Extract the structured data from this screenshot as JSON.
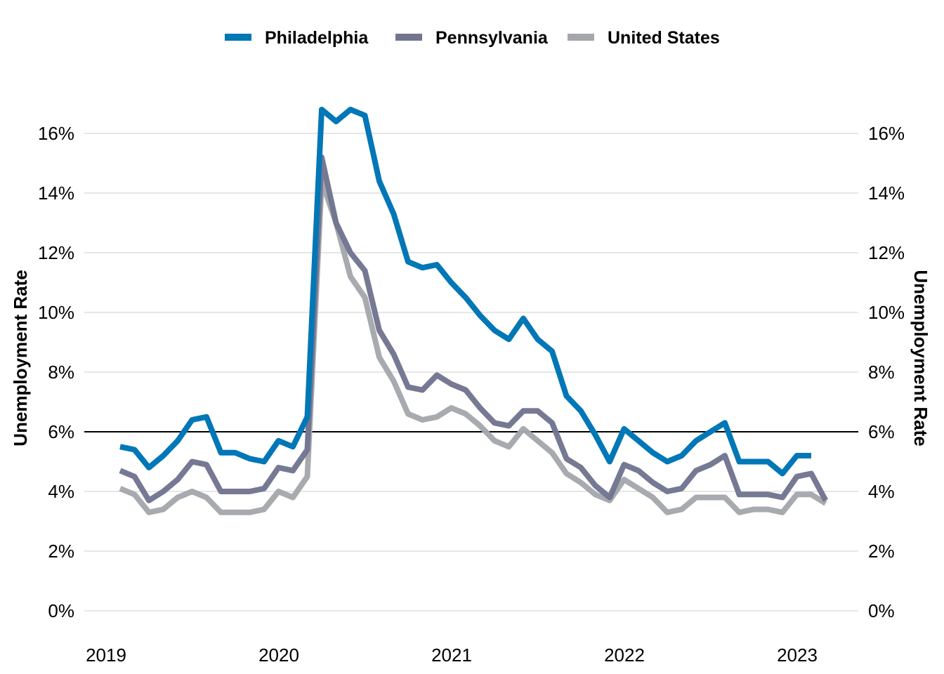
{
  "chart_data": {
    "type": "line",
    "title": "",
    "ylabel_left": "Unemployment Rate",
    "ylabel_right": "Unemployment Rate",
    "xlabel": "",
    "x_start": "2019-01",
    "x_frequency": "monthly",
    "x_tick_labels": [
      "2019",
      "2020",
      "2021",
      "2022",
      "2023"
    ],
    "y_ticks": [
      0,
      2,
      4,
      6,
      8,
      10,
      12,
      14,
      16
    ],
    "y_tick_labels": [
      "0%",
      "2%",
      "4%",
      "6%",
      "8%",
      "10%",
      "12%",
      "14%",
      "16%"
    ],
    "ylim": [
      0,
      17
    ],
    "reference_line": 6,
    "grid": "horizontal",
    "legend_position": "top",
    "series": [
      {
        "name": "Philadelphia",
        "color": "#0077b6",
        "values": [
          5.5,
          5.4,
          4.8,
          5.2,
          5.7,
          6.4,
          6.5,
          5.3,
          5.3,
          5.1,
          5.0,
          5.7,
          5.5,
          6.5,
          16.8,
          16.4,
          16.8,
          16.6,
          14.4,
          13.3,
          11.7,
          11.5,
          11.6,
          11.0,
          10.5,
          9.9,
          9.4,
          9.1,
          9.8,
          9.1,
          8.7,
          7.2,
          6.7,
          5.9,
          5.0,
          6.1,
          5.7,
          5.3,
          5.0,
          5.2,
          5.7,
          6.0,
          6.3,
          5.0,
          5.0,
          5.0,
          4.6,
          5.2,
          5.2
        ]
      },
      {
        "name": "Pennsylvania",
        "color": "#72758f",
        "values": [
          4.7,
          4.5,
          3.7,
          4.0,
          4.4,
          5.0,
          4.9,
          4.0,
          4.0,
          4.0,
          4.1,
          4.8,
          4.7,
          5.4,
          15.2,
          13.0,
          12.0,
          11.4,
          9.4,
          8.6,
          7.5,
          7.4,
          7.9,
          7.6,
          7.4,
          6.8,
          6.3,
          6.2,
          6.7,
          6.7,
          6.3,
          5.1,
          4.8,
          4.2,
          3.8,
          4.9,
          4.7,
          4.3,
          4.0,
          4.1,
          4.7,
          4.9,
          5.2,
          3.9,
          3.9,
          3.9,
          3.8,
          4.5,
          4.6,
          3.7
        ]
      },
      {
        "name": "United States",
        "color": "#a4a7ab",
        "values": [
          4.1,
          3.9,
          3.3,
          3.4,
          3.8,
          4.0,
          3.8,
          3.3,
          3.3,
          3.3,
          3.4,
          4.0,
          3.8,
          4.5,
          14.4,
          13.0,
          11.2,
          10.5,
          8.5,
          7.7,
          6.6,
          6.4,
          6.5,
          6.8,
          6.6,
          6.2,
          5.7,
          5.5,
          6.1,
          5.7,
          5.3,
          4.6,
          4.3,
          3.9,
          3.7,
          4.4,
          4.1,
          3.8,
          3.3,
          3.4,
          3.8,
          3.8,
          3.8,
          3.3,
          3.4,
          3.4,
          3.3,
          3.9,
          3.9,
          3.6
        ]
      }
    ]
  }
}
